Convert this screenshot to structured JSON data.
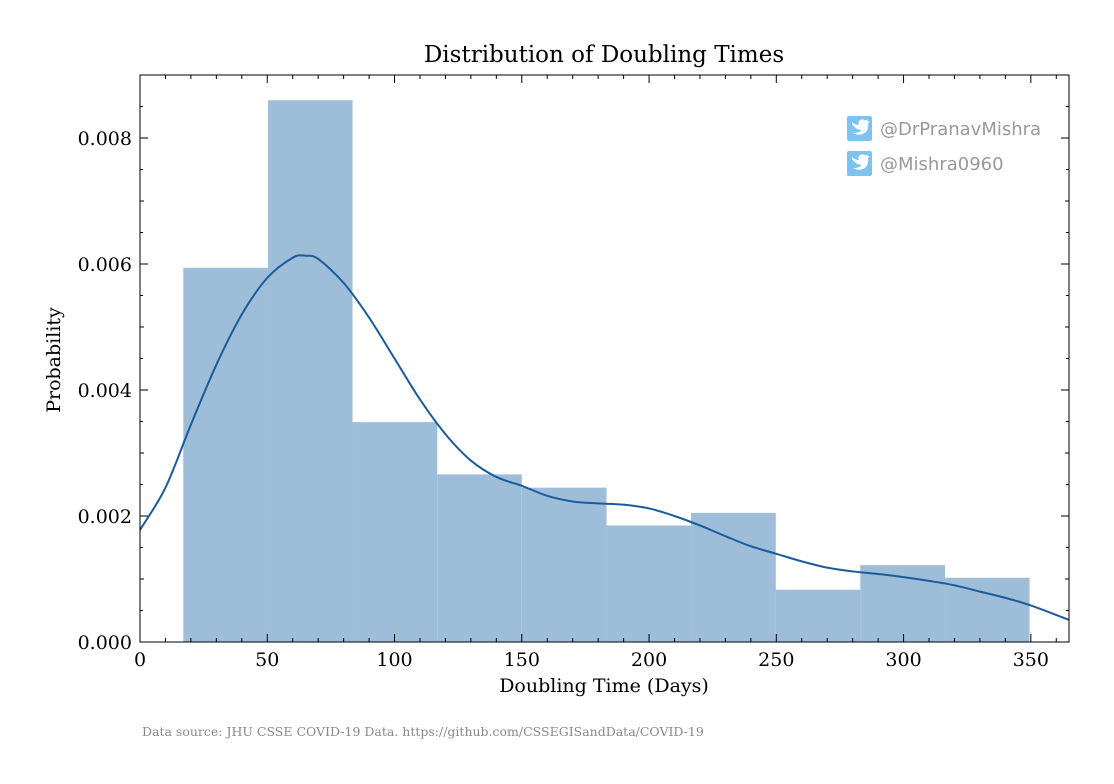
{
  "chart_data": {
    "type": "bar",
    "title": "Distribution of Doubling Times",
    "xlabel": "Doubling Time (Days)",
    "ylabel": "Probability",
    "xlim": [
      0,
      365
    ],
    "ylim": [
      0,
      0.009
    ],
    "grid": false,
    "x_ticks": [
      0,
      50,
      100,
      150,
      200,
      250,
      300,
      350
    ],
    "x_tick_labels": [
      "0",
      "50",
      "100",
      "150",
      "200",
      "250",
      "300",
      "350"
    ],
    "y_ticks": [
      0,
      0.002,
      0.004,
      0.006,
      0.008
    ],
    "y_tick_labels": [
      "0.000",
      "0.002",
      "0.004",
      "0.006",
      "0.008"
    ],
    "histogram": {
      "bins": [
        {
          "x0": 17,
          "x1": 50.3,
          "value": 0.00594
        },
        {
          "x0": 50.3,
          "x1": 83.5,
          "value": 0.0086
        },
        {
          "x0": 83.5,
          "x1": 116.8,
          "value": 0.00349
        },
        {
          "x0": 116.8,
          "x1": 150,
          "value": 0.00266
        },
        {
          "x0": 150,
          "x1": 183.3,
          "value": 0.00245
        },
        {
          "x0": 183.3,
          "x1": 216.5,
          "value": 0.00185
        },
        {
          "x0": 216.5,
          "x1": 249.8,
          "value": 0.00205
        },
        {
          "x0": 249.8,
          "x1": 283,
          "value": 0.00083
        },
        {
          "x0": 283,
          "x1": 316.3,
          "value": 0.00122
        },
        {
          "x0": 316.3,
          "x1": 349.5,
          "value": 0.00102
        }
      ]
    },
    "kde": {
      "x": [
        0,
        10,
        20,
        30,
        40,
        50,
        60,
        65,
        70,
        80,
        90,
        100,
        110,
        120,
        130,
        140,
        150,
        160,
        170,
        180,
        190,
        200,
        210,
        220,
        230,
        240,
        250,
        260,
        270,
        280,
        290,
        300,
        310,
        320,
        330,
        340,
        350,
        365
      ],
      "y": [
        0.00178,
        0.00245,
        0.00345,
        0.0044,
        0.0052,
        0.00578,
        0.0061,
        0.00613,
        0.00608,
        0.0057,
        0.00515,
        0.0045,
        0.00385,
        0.0033,
        0.00288,
        0.00262,
        0.00248,
        0.00232,
        0.00223,
        0.0022,
        0.00218,
        0.00212,
        0.002,
        0.00185,
        0.00168,
        0.00152,
        0.0014,
        0.00128,
        0.00118,
        0.00112,
        0.00108,
        0.00103,
        0.00097,
        0.0009,
        0.0008,
        0.0007,
        0.00058,
        0.00035
      ]
    },
    "colors": {
      "bars": "#9dbdd9",
      "kde_line": "#1a5c9b",
      "axes": "#000000",
      "twitter_icon": "#7ec3ef",
      "watermark_text": "#999999",
      "source_text": "#888888"
    },
    "legend_placement": "top-right"
  },
  "watermark": {
    "handles": [
      "@DrPranavMishra",
      "@Mishra0960"
    ],
    "icon": "twitter-bird-icon"
  },
  "source_note": "Data source: JHU CSSE COVID-19 Data. https://github.com/CSSEGISandData/COVID-19"
}
